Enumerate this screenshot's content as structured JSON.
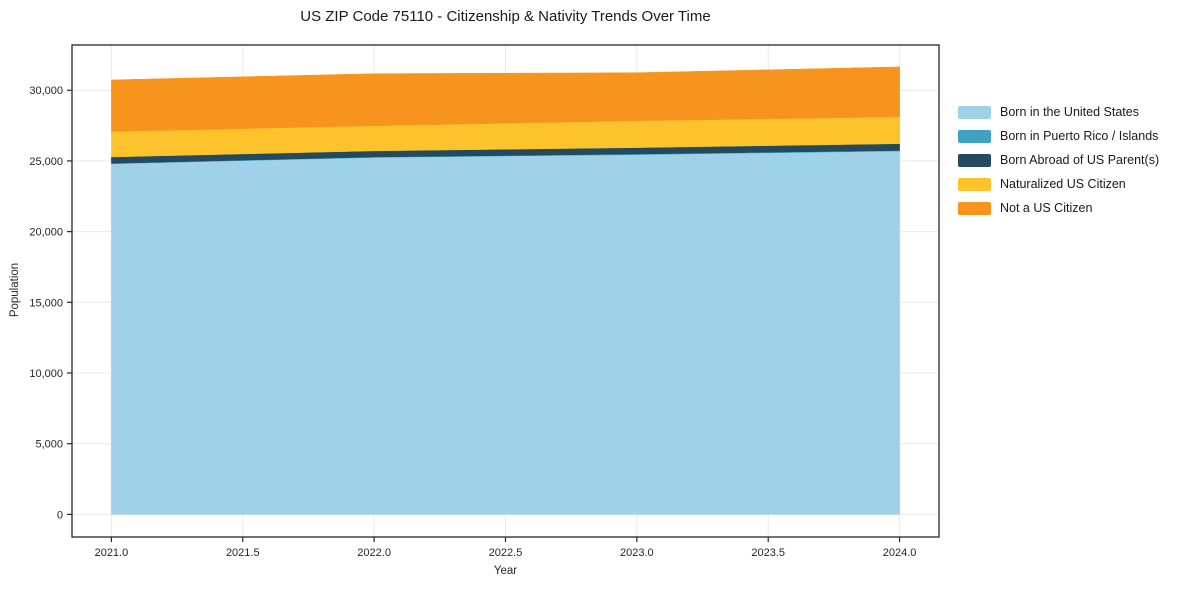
{
  "title": "US ZIP Code 75110 - Citizenship & Nativity Trends Over Time",
  "chart_data": {
    "type": "area",
    "stacked": true,
    "title": "US ZIP Code 75110 - Citizenship & Nativity Trends Over Time",
    "xlabel": "Year",
    "ylabel": "Population",
    "x": [
      2021,
      2022,
      2023,
      2024
    ],
    "series": [
      {
        "name": "Born in the United States",
        "color": "#9fd1e8",
        "values": [
          24800,
          25250,
          25450,
          25700
        ]
      },
      {
        "name": "Born in Puerto Rico / Islands",
        "color": "#3fa2c4",
        "values": [
          30,
          30,
          40,
          40
        ]
      },
      {
        "name": "Born Abroad of US Parent(s)",
        "color": "#234a5e",
        "values": [
          450,
          430,
          450,
          480
        ]
      },
      {
        "name": "Naturalized US Citizen",
        "color": "#fcc32d",
        "values": [
          1800,
          1780,
          1900,
          1900
        ]
      },
      {
        "name": "Not a US Citizen",
        "color": "#f7941e",
        "values": [
          3650,
          3680,
          3400,
          3530
        ]
      }
    ],
    "totals": [
      30730,
      31170,
      31240,
      31650
    ],
    "x_ticks": [
      2021.0,
      2021.5,
      2022.0,
      2022.5,
      2023.0,
      2023.5,
      2024.0
    ],
    "x_tick_labels": [
      "2021.0",
      "2021.5",
      "2022.0",
      "2022.5",
      "2023.0",
      "2023.5",
      "2024.0"
    ],
    "y_ticks": [
      0,
      5000,
      10000,
      15000,
      20000,
      25000,
      30000
    ],
    "y_tick_labels": [
      "0",
      "5,000",
      "10,000",
      "15,000",
      "20,000",
      "25,000",
      "30,000"
    ],
    "xlim": [
      2020.85,
      2024.15
    ],
    "ylim": [
      -1600,
      33200
    ],
    "grid": true,
    "legend_position": "right-outside"
  },
  "colors": {
    "grid": "#e9e9e9",
    "spine": "#262626",
    "tick_text": "#262626",
    "background": "#ffffff"
  }
}
